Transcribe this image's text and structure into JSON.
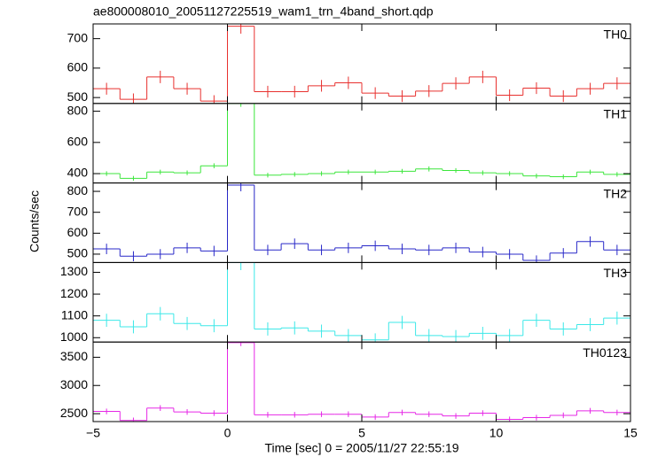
{
  "chart_data": [
    {
      "type": "histogram",
      "title": "ae800008010_20051127225519_wam1_trn_4band_short.qdp",
      "label": "TH0",
      "color": "#e8312f",
      "bins": [
        -5,
        -4,
        -3,
        -2,
        -1,
        0,
        1,
        2,
        3,
        4,
        5,
        6,
        7,
        8,
        9,
        10,
        11,
        12,
        13,
        14,
        15
      ],
      "values": [
        530,
        494,
        570,
        530,
        488,
        742,
        520,
        520,
        540,
        550,
        515,
        505,
        522,
        548,
        570,
        508,
        532,
        505,
        530,
        548
      ],
      "errors": [
        20,
        20,
        21,
        20,
        20,
        25,
        20,
        20,
        20,
        21,
        20,
        20,
        20,
        21,
        21,
        20,
        20,
        20,
        20,
        21
      ],
      "ylim": [
        480,
        750
      ],
      "yticks": [
        500,
        600,
        700
      ]
    },
    {
      "type": "histogram",
      "label": "TH1",
      "color": "#3ce63c",
      "bins": [
        -5,
        -4,
        -3,
        -2,
        -1,
        0,
        1,
        2,
        3,
        4,
        5,
        6,
        7,
        8,
        9,
        10,
        11,
        12,
        13,
        14,
        15
      ],
      "values": [
        400,
        370,
        410,
        405,
        450,
        850,
        390,
        395,
        400,
        410,
        410,
        415,
        430,
        420,
        405,
        400,
        385,
        380,
        410,
        395
      ],
      "errors": [
        15,
        15,
        15,
        15,
        16,
        22,
        15,
        15,
        15,
        15,
        15,
        15,
        16,
        15,
        15,
        15,
        15,
        15,
        15,
        15
      ],
      "ylim": [
        340,
        850
      ],
      "yticks": [
        400,
        600,
        800
      ]
    },
    {
      "type": "histogram",
      "label": "TH2",
      "color": "#2828c8",
      "bins": [
        -5,
        -4,
        -3,
        -2,
        -1,
        0,
        1,
        2,
        3,
        4,
        5,
        6,
        7,
        8,
        9,
        10,
        11,
        12,
        13,
        14,
        15
      ],
      "values": [
        525,
        490,
        500,
        530,
        515,
        830,
        520,
        550,
        520,
        530,
        540,
        525,
        520,
        530,
        510,
        500,
        470,
        505,
        560,
        520
      ],
      "errors": [
        25,
        24,
        24,
        25,
        25,
        30,
        25,
        25,
        25,
        25,
        25,
        25,
        25,
        25,
        25,
        24,
        24,
        24,
        25,
        25
      ],
      "ylim": [
        460,
        840
      ],
      "yticks": [
        500,
        600,
        700,
        800
      ]
    },
    {
      "type": "histogram",
      "label": "TH3",
      "color": "#3ce8e8",
      "ylabel": "Counts/sec",
      "bins": [
        -5,
        -4,
        -3,
        -2,
        -1,
        0,
        1,
        2,
        3,
        4,
        5,
        6,
        7,
        8,
        9,
        10,
        11,
        12,
        13,
        14,
        15
      ],
      "values": [
        1080,
        1050,
        1110,
        1065,
        1055,
        1345,
        1040,
        1045,
        1030,
        1010,
        990,
        1070,
        1010,
        1005,
        1020,
        1010,
        1080,
        1040,
        1060,
        1090
      ],
      "errors": [
        30,
        30,
        31,
        30,
        30,
        35,
        30,
        30,
        30,
        30,
        30,
        30,
        30,
        30,
        30,
        30,
        30,
        30,
        30,
        30
      ],
      "ylim": [
        980,
        1345
      ],
      "yticks": [
        1000,
        1100,
        1200,
        1300
      ]
    },
    {
      "type": "histogram",
      "label": "TH0123",
      "color": "#e628e6",
      "xlabel": "Time [sec] 0 = 2005/11/27 22:55:19",
      "bins": [
        -5,
        -4,
        -3,
        -2,
        -1,
        0,
        1,
        2,
        3,
        4,
        5,
        6,
        7,
        8,
        9,
        10,
        11,
        12,
        13,
        14,
        15
      ],
      "values": [
        2540,
        2380,
        2600,
        2530,
        2510,
        3760,
        2480,
        2480,
        2490,
        2490,
        2440,
        2520,
        2490,
        2460,
        2510,
        2400,
        2430,
        2470,
        2550,
        2520
      ],
      "errors": [
        50,
        50,
        51,
        50,
        50,
        61,
        50,
        50,
        50,
        50,
        50,
        50,
        50,
        50,
        50,
        49,
        50,
        50,
        51,
        50
      ],
      "ylim": [
        2360,
        3770
      ],
      "yticks": [
        2500,
        3000,
        3500
      ],
      "xlim": [
        -5,
        15
      ],
      "xticks": [
        {
          "value": -5,
          "label": "−5"
        },
        0,
        5,
        10,
        15
      ]
    }
  ]
}
